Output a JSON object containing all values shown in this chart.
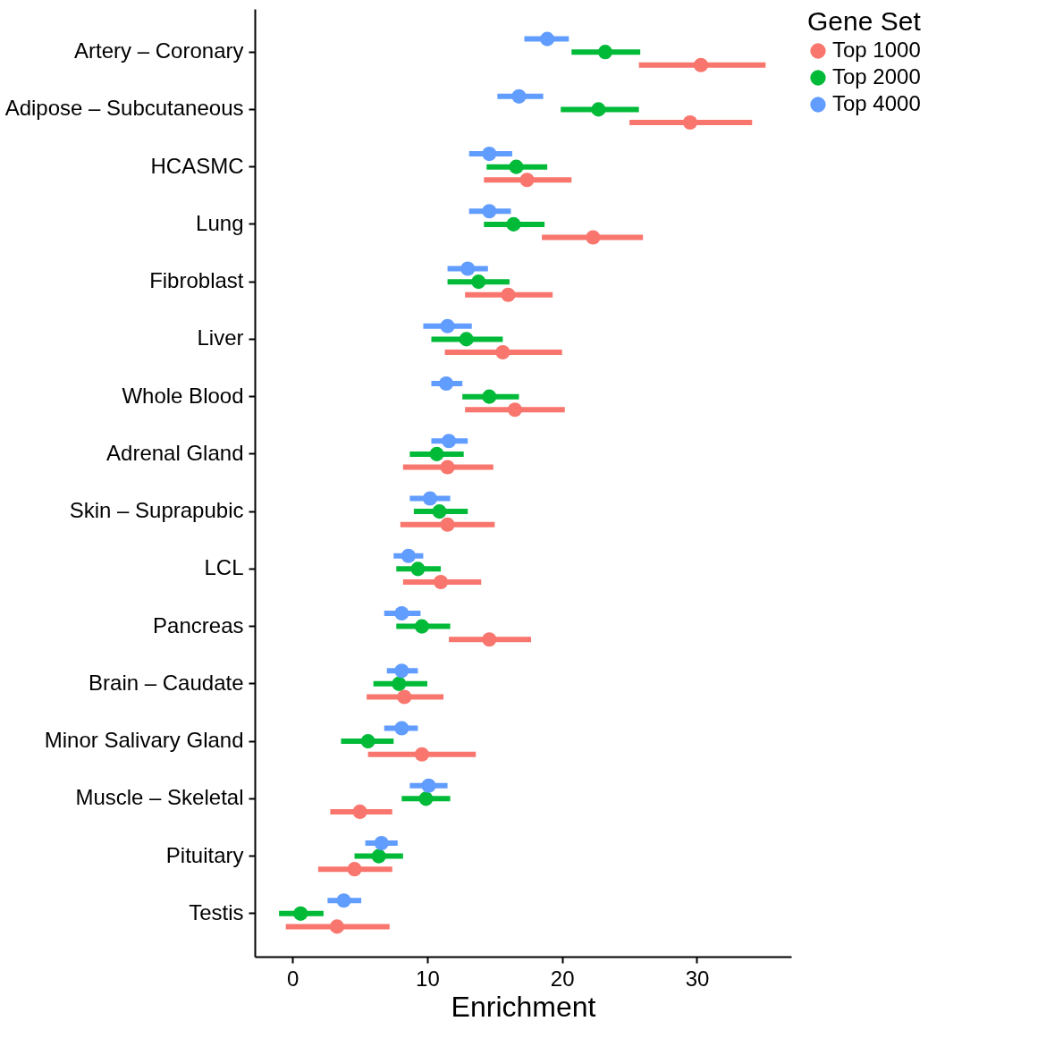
{
  "chart_data": {
    "type": "scatter",
    "orientation": "horizontal",
    "xlabel": "Enrichment",
    "legend_title": "Gene Set",
    "legend": "right",
    "grid": false,
    "marker": "circle",
    "categories": [
      "Artery – Coronary",
      "Adipose – Subcutaneous",
      "HCASMC",
      "Lung",
      "Fibroblast",
      "Liver",
      "Whole Blood",
      "Adrenal Gland",
      "Skin – Suprapubic",
      "LCL",
      "Pancreas",
      "Brain – Caudate",
      "Minor Salivary Gland",
      "Muscle – Skeletal",
      "Pituitary",
      "Testis"
    ],
    "xlim": [
      -2.8,
      37
    ],
    "xticks": [
      0,
      10,
      20,
      30
    ],
    "series": [
      {
        "name": "Top 1000",
        "color": "#f8766d",
        "values": [
          30.3,
          29.5,
          17.4,
          22.3,
          16.0,
          15.6,
          16.5,
          11.5,
          11.5,
          11.0,
          14.6,
          8.3,
          9.6,
          5.0,
          4.6,
          3.3
        ],
        "errors": [
          [
            25.7,
            35.1
          ],
          [
            25.0,
            34.1
          ],
          [
            14.2,
            20.7
          ],
          [
            18.5,
            26.0
          ],
          [
            12.8,
            19.3
          ],
          [
            11.3,
            20.0
          ],
          [
            12.8,
            20.2
          ],
          [
            8.2,
            14.9
          ],
          [
            8.0,
            15.0
          ],
          [
            8.2,
            14.0
          ],
          [
            11.6,
            17.7
          ],
          [
            5.5,
            11.2
          ],
          [
            5.6,
            13.6
          ],
          [
            2.8,
            7.4
          ],
          [
            1.9,
            7.4
          ],
          [
            -0.5,
            7.2
          ]
        ]
      },
      {
        "name": "Top 2000",
        "color": "#00ba38",
        "values": [
          23.2,
          22.7,
          16.6,
          16.4,
          13.8,
          12.9,
          14.6,
          10.7,
          10.9,
          9.3,
          9.6,
          7.9,
          5.6,
          9.9,
          6.4,
          0.6
        ],
        "errors": [
          [
            20.7,
            25.8
          ],
          [
            19.9,
            25.7
          ],
          [
            14.4,
            18.9
          ],
          [
            14.2,
            18.7
          ],
          [
            11.5,
            16.1
          ],
          [
            10.3,
            15.6
          ],
          [
            12.6,
            16.8
          ],
          [
            8.7,
            12.7
          ],
          [
            9.0,
            13.0
          ],
          [
            7.7,
            11.0
          ],
          [
            7.7,
            11.7
          ],
          [
            6.0,
            10.0
          ],
          [
            3.6,
            7.5
          ],
          [
            8.1,
            11.7
          ],
          [
            4.6,
            8.2
          ],
          [
            -1.0,
            2.3
          ]
        ]
      },
      {
        "name": "Top 4000",
        "color": "#619cff",
        "values": [
          18.9,
          16.8,
          14.6,
          14.6,
          13.0,
          11.5,
          11.4,
          11.6,
          10.2,
          8.6,
          8.1,
          8.1,
          8.1,
          10.1,
          6.6,
          3.8
        ],
        "errors": [
          [
            17.2,
            20.5
          ],
          [
            15.2,
            18.6
          ],
          [
            13.1,
            16.3
          ],
          [
            13.1,
            16.2
          ],
          [
            11.5,
            14.5
          ],
          [
            9.7,
            13.3
          ],
          [
            10.3,
            12.6
          ],
          [
            10.3,
            13.0
          ],
          [
            8.7,
            11.7
          ],
          [
            7.5,
            9.7
          ],
          [
            6.8,
            9.5
          ],
          [
            7.0,
            9.3
          ],
          [
            6.8,
            9.3
          ],
          [
            8.7,
            11.5
          ],
          [
            5.4,
            7.8
          ],
          [
            2.6,
            5.1
          ]
        ]
      }
    ]
  }
}
